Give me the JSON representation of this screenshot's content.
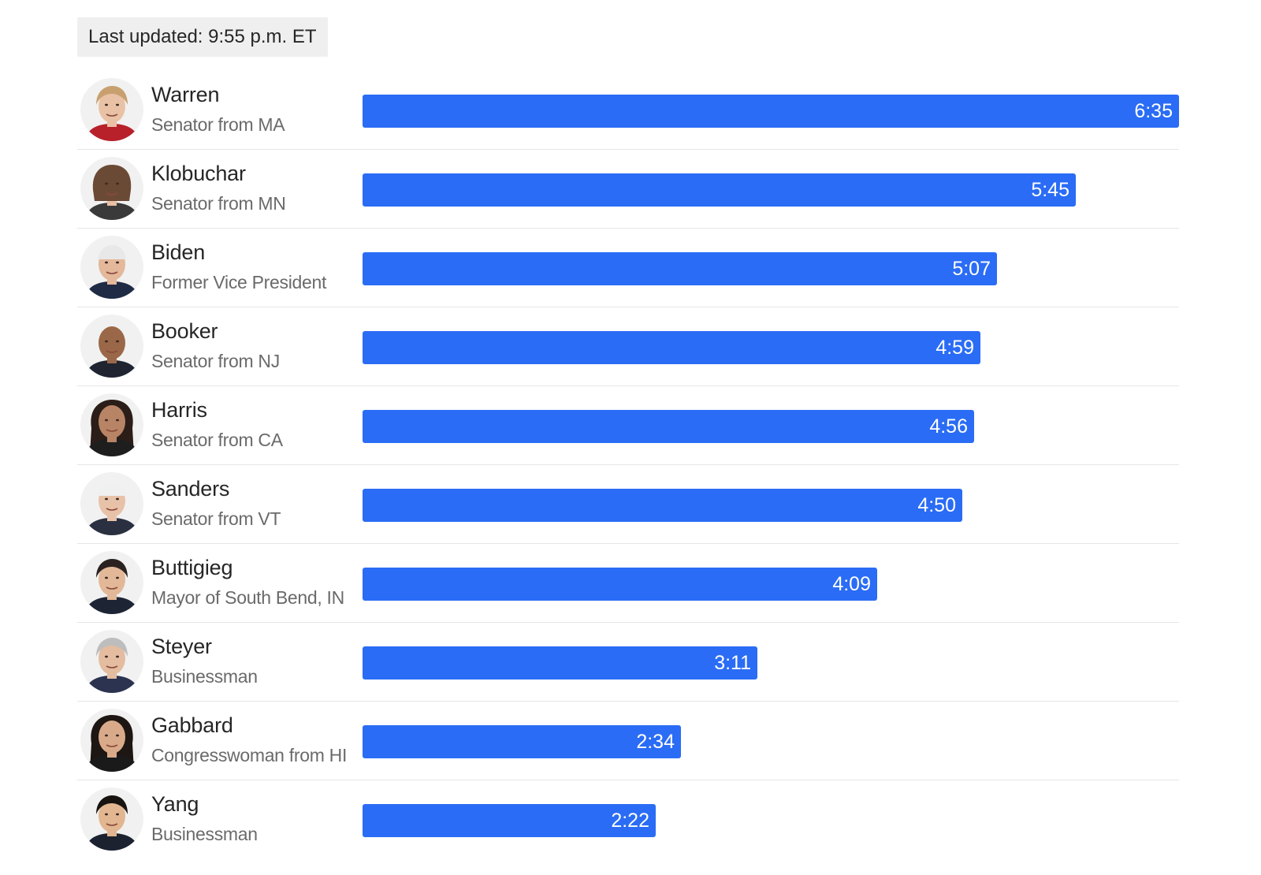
{
  "header": {
    "last_updated": "Last updated: 9:55 p.m. ET"
  },
  "colors": {
    "bar": "#2a6cf5",
    "label_bg": "#efefef"
  },
  "chart_data": {
    "type": "bar",
    "orientation": "horizontal",
    "unit": "minutes:seconds of speaking time",
    "categories": [
      "Warren",
      "Klobuchar",
      "Biden",
      "Booker",
      "Harris",
      "Sanders",
      "Buttigieg",
      "Steyer",
      "Gabbard",
      "Yang"
    ],
    "subtitles": [
      "Senator from MA",
      "Senator from MN",
      "Former Vice President",
      "Senator from NJ",
      "Senator from CA",
      "Senator from VT",
      "Mayor of South Bend, IN",
      "Businessman",
      "Congresswoman from HI",
      "Businessman"
    ],
    "labels": [
      "6:35",
      "5:45",
      "5:07",
      "4:59",
      "4:56",
      "4:50",
      "4:09",
      "3:11",
      "2:34",
      "2:22"
    ],
    "values": [
      395,
      345,
      307,
      299,
      296,
      290,
      249,
      191,
      154,
      142
    ],
    "avatar_icons": [
      "warren-portrait-icon",
      "klobuchar-portrait-icon",
      "biden-portrait-icon",
      "booker-portrait-icon",
      "harris-portrait-icon",
      "sanders-portrait-icon",
      "buttigieg-portrait-icon",
      "steyer-portrait-icon",
      "gabbard-portrait-icon",
      "yang-portrait-icon"
    ],
    "xlim": [
      0,
      395
    ],
    "grid": false,
    "legend": "none"
  }
}
